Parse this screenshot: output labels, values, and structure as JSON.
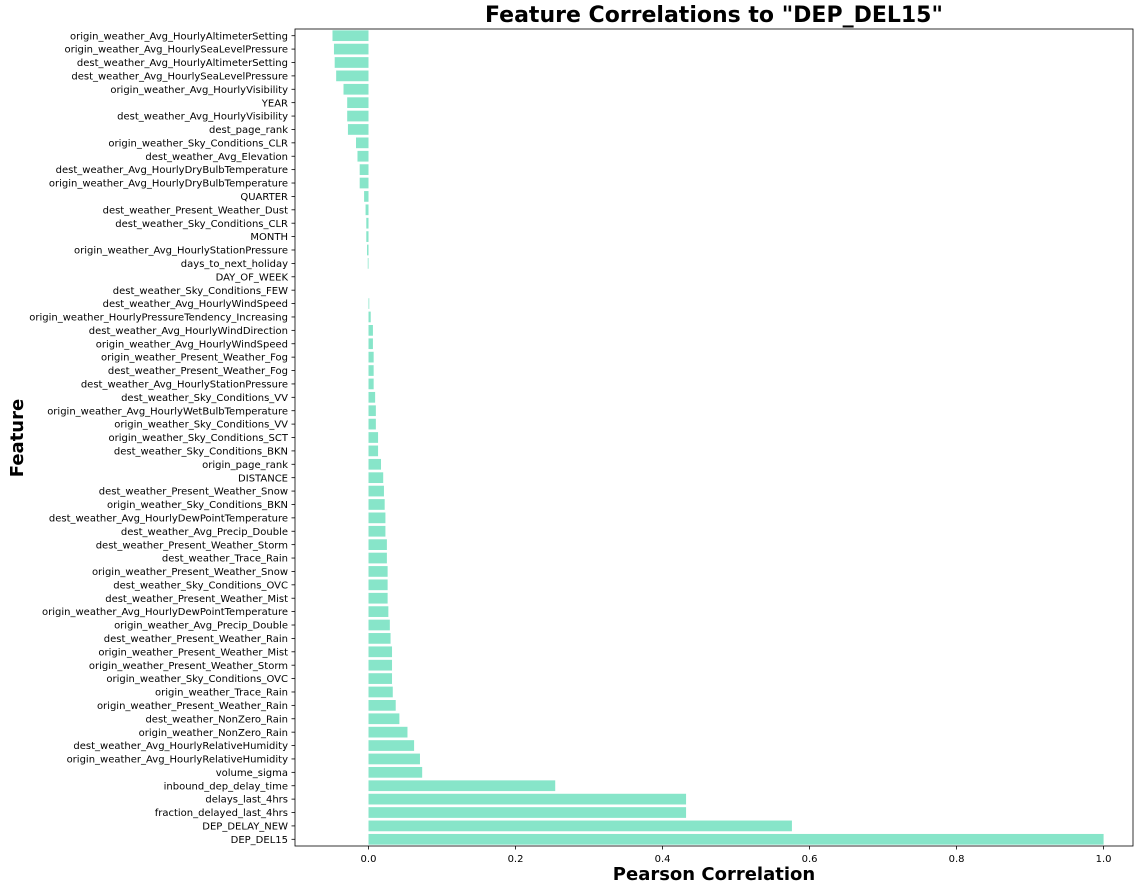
{
  "chart_data": {
    "type": "bar",
    "orientation": "horizontal",
    "title": "Feature Correlations to \"DEP_DEL15\"",
    "xlabel": "Pearson Correlation",
    "ylabel": "Feature",
    "xlim": [
      -0.1,
      1.04
    ],
    "xticks": [
      0.0,
      0.2,
      0.4,
      0.6,
      0.8,
      1.0
    ],
    "xtick_labels": [
      "0.0",
      "0.2",
      "0.4",
      "0.6",
      "0.8",
      "1.0"
    ],
    "grid": false,
    "bar_color": "#87e5c9",
    "categories": [
      "origin_weather_Avg_HourlyAltimeterSetting",
      "origin_weather_Avg_HourlySeaLevelPressure",
      "dest_weather_Avg_HourlyAltimeterSetting",
      "dest_weather_Avg_HourlySeaLevelPressure",
      "origin_weather_Avg_HourlyVisibility",
      "YEAR",
      "dest_weather_Avg_HourlyVisibility",
      "dest_page_rank",
      "origin_weather_Sky_Conditions_CLR",
      "dest_weather_Avg_Elevation",
      "dest_weather_Avg_HourlyDryBulbTemperature",
      "origin_weather_Avg_HourlyDryBulbTemperature",
      "QUARTER",
      "dest_weather_Present_Weather_Dust",
      "dest_weather_Sky_Conditions_CLR",
      "MONTH",
      "origin_weather_Avg_HourlyStationPressure",
      "days_to_next_holiday",
      "DAY_OF_WEEK",
      "dest_weather_Sky_Conditions_FEW",
      "dest_weather_Avg_HourlyWindSpeed",
      "origin_weather_HourlyPressureTendency_Increasing",
      "dest_weather_Avg_HourlyWindDirection",
      "origin_weather_Avg_HourlyWindSpeed",
      "origin_weather_Present_Weather_Fog",
      "dest_weather_Present_Weather_Fog",
      "dest_weather_Avg_HourlyStationPressure",
      "dest_weather_Sky_Conditions_VV",
      "origin_weather_Avg_HourlyWetBulbTemperature",
      "origin_weather_Sky_Conditions_VV",
      "origin_weather_Sky_Conditions_SCT",
      "dest_weather_Sky_Conditions_BKN",
      "origin_page_rank",
      "DISTANCE",
      "dest_weather_Present_Weather_Snow",
      "origin_weather_Sky_Conditions_BKN",
      "dest_weather_Avg_HourlyDewPointTemperature",
      "dest_weather_Avg_Precip_Double",
      "dest_weather_Present_Weather_Storm",
      "dest_weather_Trace_Rain",
      "origin_weather_Present_Weather_Snow",
      "dest_weather_Sky_Conditions_OVC",
      "dest_weather_Present_Weather_Mist",
      "origin_weather_Avg_HourlyDewPointTemperature",
      "origin_weather_Avg_Precip_Double",
      "dest_weather_Present_Weather_Rain",
      "origin_weather_Present_Weather_Mist",
      "origin_weather_Present_Weather_Storm",
      "origin_weather_Sky_Conditions_OVC",
      "origin_weather_Trace_Rain",
      "origin_weather_Present_Weather_Rain",
      "dest_weather_NonZero_Rain",
      "origin_weather_NonZero_Rain",
      "dest_weather_Avg_HourlyRelativeHumidity",
      "origin_weather_Avg_HourlyRelativeHumidity",
      "volume_sigma",
      "inbound_dep_delay_time",
      "delays_last_4hrs",
      "fraction_delayed_last_4hrs",
      "DEP_DELAY_NEW",
      "DEP_DEL15"
    ],
    "values": [
      -0.049,
      -0.047,
      -0.046,
      -0.044,
      -0.034,
      -0.029,
      -0.029,
      -0.028,
      -0.017,
      -0.015,
      -0.012,
      -0.012,
      -0.006,
      -0.004,
      -0.003,
      -0.003,
      -0.002,
      -0.001,
      0.0,
      0.0,
      0.001,
      0.003,
      0.006,
      0.006,
      0.007,
      0.007,
      0.007,
      0.009,
      0.01,
      0.01,
      0.013,
      0.013,
      0.017,
      0.02,
      0.021,
      0.022,
      0.023,
      0.023,
      0.025,
      0.025,
      0.026,
      0.026,
      0.026,
      0.027,
      0.029,
      0.03,
      0.032,
      0.032,
      0.032,
      0.033,
      0.037,
      0.042,
      0.053,
      0.062,
      0.07,
      0.073,
      0.254,
      0.432,
      0.432,
      0.576,
      1.0
    ]
  }
}
